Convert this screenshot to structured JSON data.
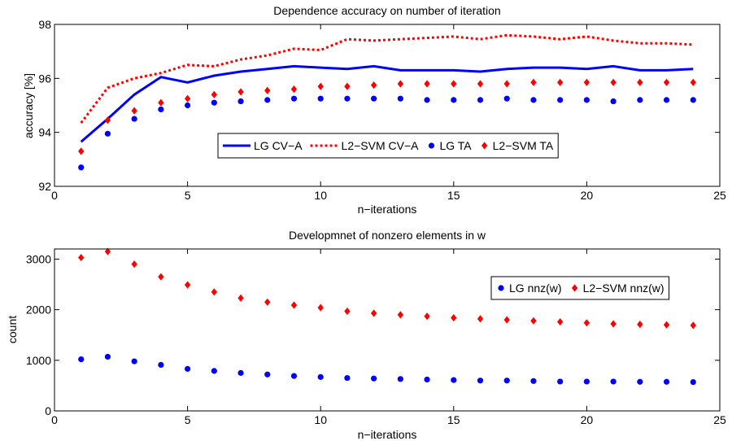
{
  "chart_data": [
    {
      "type": "line",
      "title": "Dependence accuracy on number of iteration",
      "xlabel": "n−iterations",
      "ylabel": "accuracy [%]",
      "xlim": [
        0,
        25
      ],
      "ylim": [
        92,
        98
      ],
      "xticks": [
        0,
        5,
        10,
        15,
        20,
        25
      ],
      "yticks": [
        92,
        94,
        96,
        98
      ],
      "grid": false,
      "legend_position": "inside-center",
      "x": [
        1,
        2,
        3,
        4,
        5,
        6,
        7,
        8,
        9,
        10,
        11,
        12,
        13,
        14,
        15,
        16,
        17,
        18,
        19,
        20,
        21,
        22,
        23,
        24
      ],
      "series": [
        {
          "name": "LG CV−A",
          "style": "solid-line",
          "color": "#0000ff",
          "values": [
            93.65,
            94.5,
            95.4,
            96.05,
            95.85,
            96.1,
            96.25,
            96.35,
            96.45,
            96.4,
            96.35,
            96.45,
            96.3,
            96.3,
            96.3,
            96.25,
            96.35,
            96.4,
            96.4,
            96.35,
            96.45,
            96.3,
            96.3,
            96.35
          ]
        },
        {
          "name": "L2−SVM CV−A",
          "style": "dotted-line",
          "color": "#ff0000",
          "values": [
            94.35,
            95.65,
            96.0,
            96.2,
            96.5,
            96.45,
            96.7,
            96.85,
            97.1,
            97.05,
            97.45,
            97.4,
            97.45,
            97.5,
            97.55,
            97.45,
            97.6,
            97.55,
            97.45,
            97.55,
            97.4,
            97.3,
            97.3,
            97.25
          ]
        },
        {
          "name": "LG TA",
          "style": "circle-markers",
          "color": "#0000ff",
          "values": [
            92.7,
            93.95,
            94.5,
            94.85,
            95.0,
            95.1,
            95.15,
            95.2,
            95.25,
            95.25,
            95.25,
            95.25,
            95.25,
            95.2,
            95.2,
            95.2,
            95.25,
            95.2,
            95.2,
            95.2,
            95.15,
            95.2,
            95.2,
            95.2
          ]
        },
        {
          "name": "L2−SVM TA",
          "style": "diamond-markers",
          "color": "#ff0000",
          "values": [
            93.3,
            94.45,
            94.8,
            95.1,
            95.25,
            95.4,
            95.5,
            95.55,
            95.6,
            95.7,
            95.7,
            95.75,
            95.8,
            95.8,
            95.8,
            95.8,
            95.8,
            95.85,
            95.85,
            95.85,
            95.85,
            95.85,
            95.85,
            95.85
          ]
        }
      ]
    },
    {
      "type": "scatter",
      "title": "Developmnet of nonzero elements in w",
      "xlabel": "n−iterations",
      "ylabel": "count",
      "xlim": [
        0,
        25
      ],
      "ylim": [
        0,
        3200
      ],
      "xticks": [
        0,
        5,
        10,
        15,
        20,
        25
      ],
      "yticks": [
        0,
        1000,
        2000,
        3000
      ],
      "grid": false,
      "legend_position": "top-right",
      "x": [
        1,
        2,
        3,
        4,
        5,
        6,
        7,
        8,
        9,
        10,
        11,
        12,
        13,
        14,
        15,
        16,
        17,
        18,
        19,
        20,
        21,
        22,
        23,
        24
      ],
      "series": [
        {
          "name": "LG nnz(w)",
          "style": "circle-markers",
          "color": "#0000ff",
          "values": [
            1020,
            1070,
            980,
            910,
            830,
            790,
            750,
            720,
            690,
            670,
            650,
            640,
            630,
            620,
            610,
            600,
            600,
            590,
            580,
            580,
            580,
            575,
            575,
            570
          ]
        },
        {
          "name": "L2−SVM nnz(w)",
          "style": "diamond-markers",
          "color": "#ff0000",
          "values": [
            3030,
            3150,
            2900,
            2650,
            2490,
            2350,
            2230,
            2150,
            2090,
            2040,
            1970,
            1930,
            1900,
            1870,
            1840,
            1820,
            1800,
            1780,
            1760,
            1740,
            1720,
            1710,
            1700,
            1690
          ]
        }
      ]
    }
  ]
}
